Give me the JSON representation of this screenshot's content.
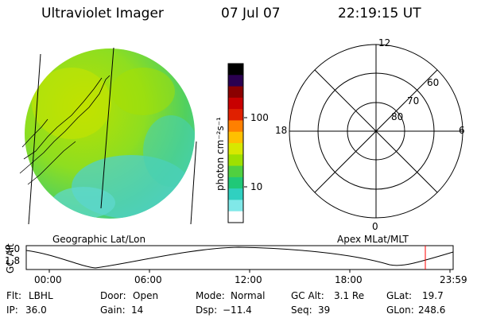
{
  "header": {
    "instrument": "Ultraviolet Imager",
    "date": "07 Jul 07",
    "time": "22:19:15 UT"
  },
  "colorbar": {
    "unit_label": "photon cm⁻²s⁻¹",
    "tick_labels": [
      "100",
      "10"
    ],
    "colors": [
      "#000000",
      "#2a0050",
      "#8b0000",
      "#c80000",
      "#e02000",
      "#ff8000",
      "#ffc000",
      "#d8e800",
      "#9ee000",
      "#50d040",
      "#20c878",
      "#30d0c0",
      "#80e8e8",
      "#ffffff"
    ]
  },
  "polar_plot": {
    "mlt_labels": {
      "top": "12",
      "left": "18",
      "right": "6",
      "bottom": "0"
    },
    "lat_labels": [
      "60",
      "70",
      "80"
    ]
  },
  "timeline": {
    "y_axis_label": "GC Alt",
    "y_ticks": [
      "9.0",
      "1.8"
    ],
    "left_label": "Geographic Lat/Lon",
    "right_label": "Apex MLat/MLT",
    "x_ticks": [
      "00:00",
      "06:00",
      "12:00",
      "18:00",
      "23:59"
    ],
    "marker_color": "#ff0000"
  },
  "info_rows": [
    [
      {
        "label": "Flt:",
        "value": "LBHL"
      },
      {
        "label": "Door:",
        "value": "Open"
      },
      {
        "label": "Mode:",
        "value": "Normal"
      },
      {
        "label": "GC Alt:",
        "value": "3.1 Re"
      },
      {
        "label": "GLat:",
        "value": "19.7"
      }
    ],
    [
      {
        "label": "IP:",
        "value": "36.0"
      },
      {
        "label": "Gain:",
        "value": "14"
      },
      {
        "label": "Dsp:",
        "value": "−11.4"
      },
      {
        "label": "Seq:",
        "value": "39"
      },
      {
        "label": "GLon:",
        "value": "248.6"
      }
    ]
  ]
}
